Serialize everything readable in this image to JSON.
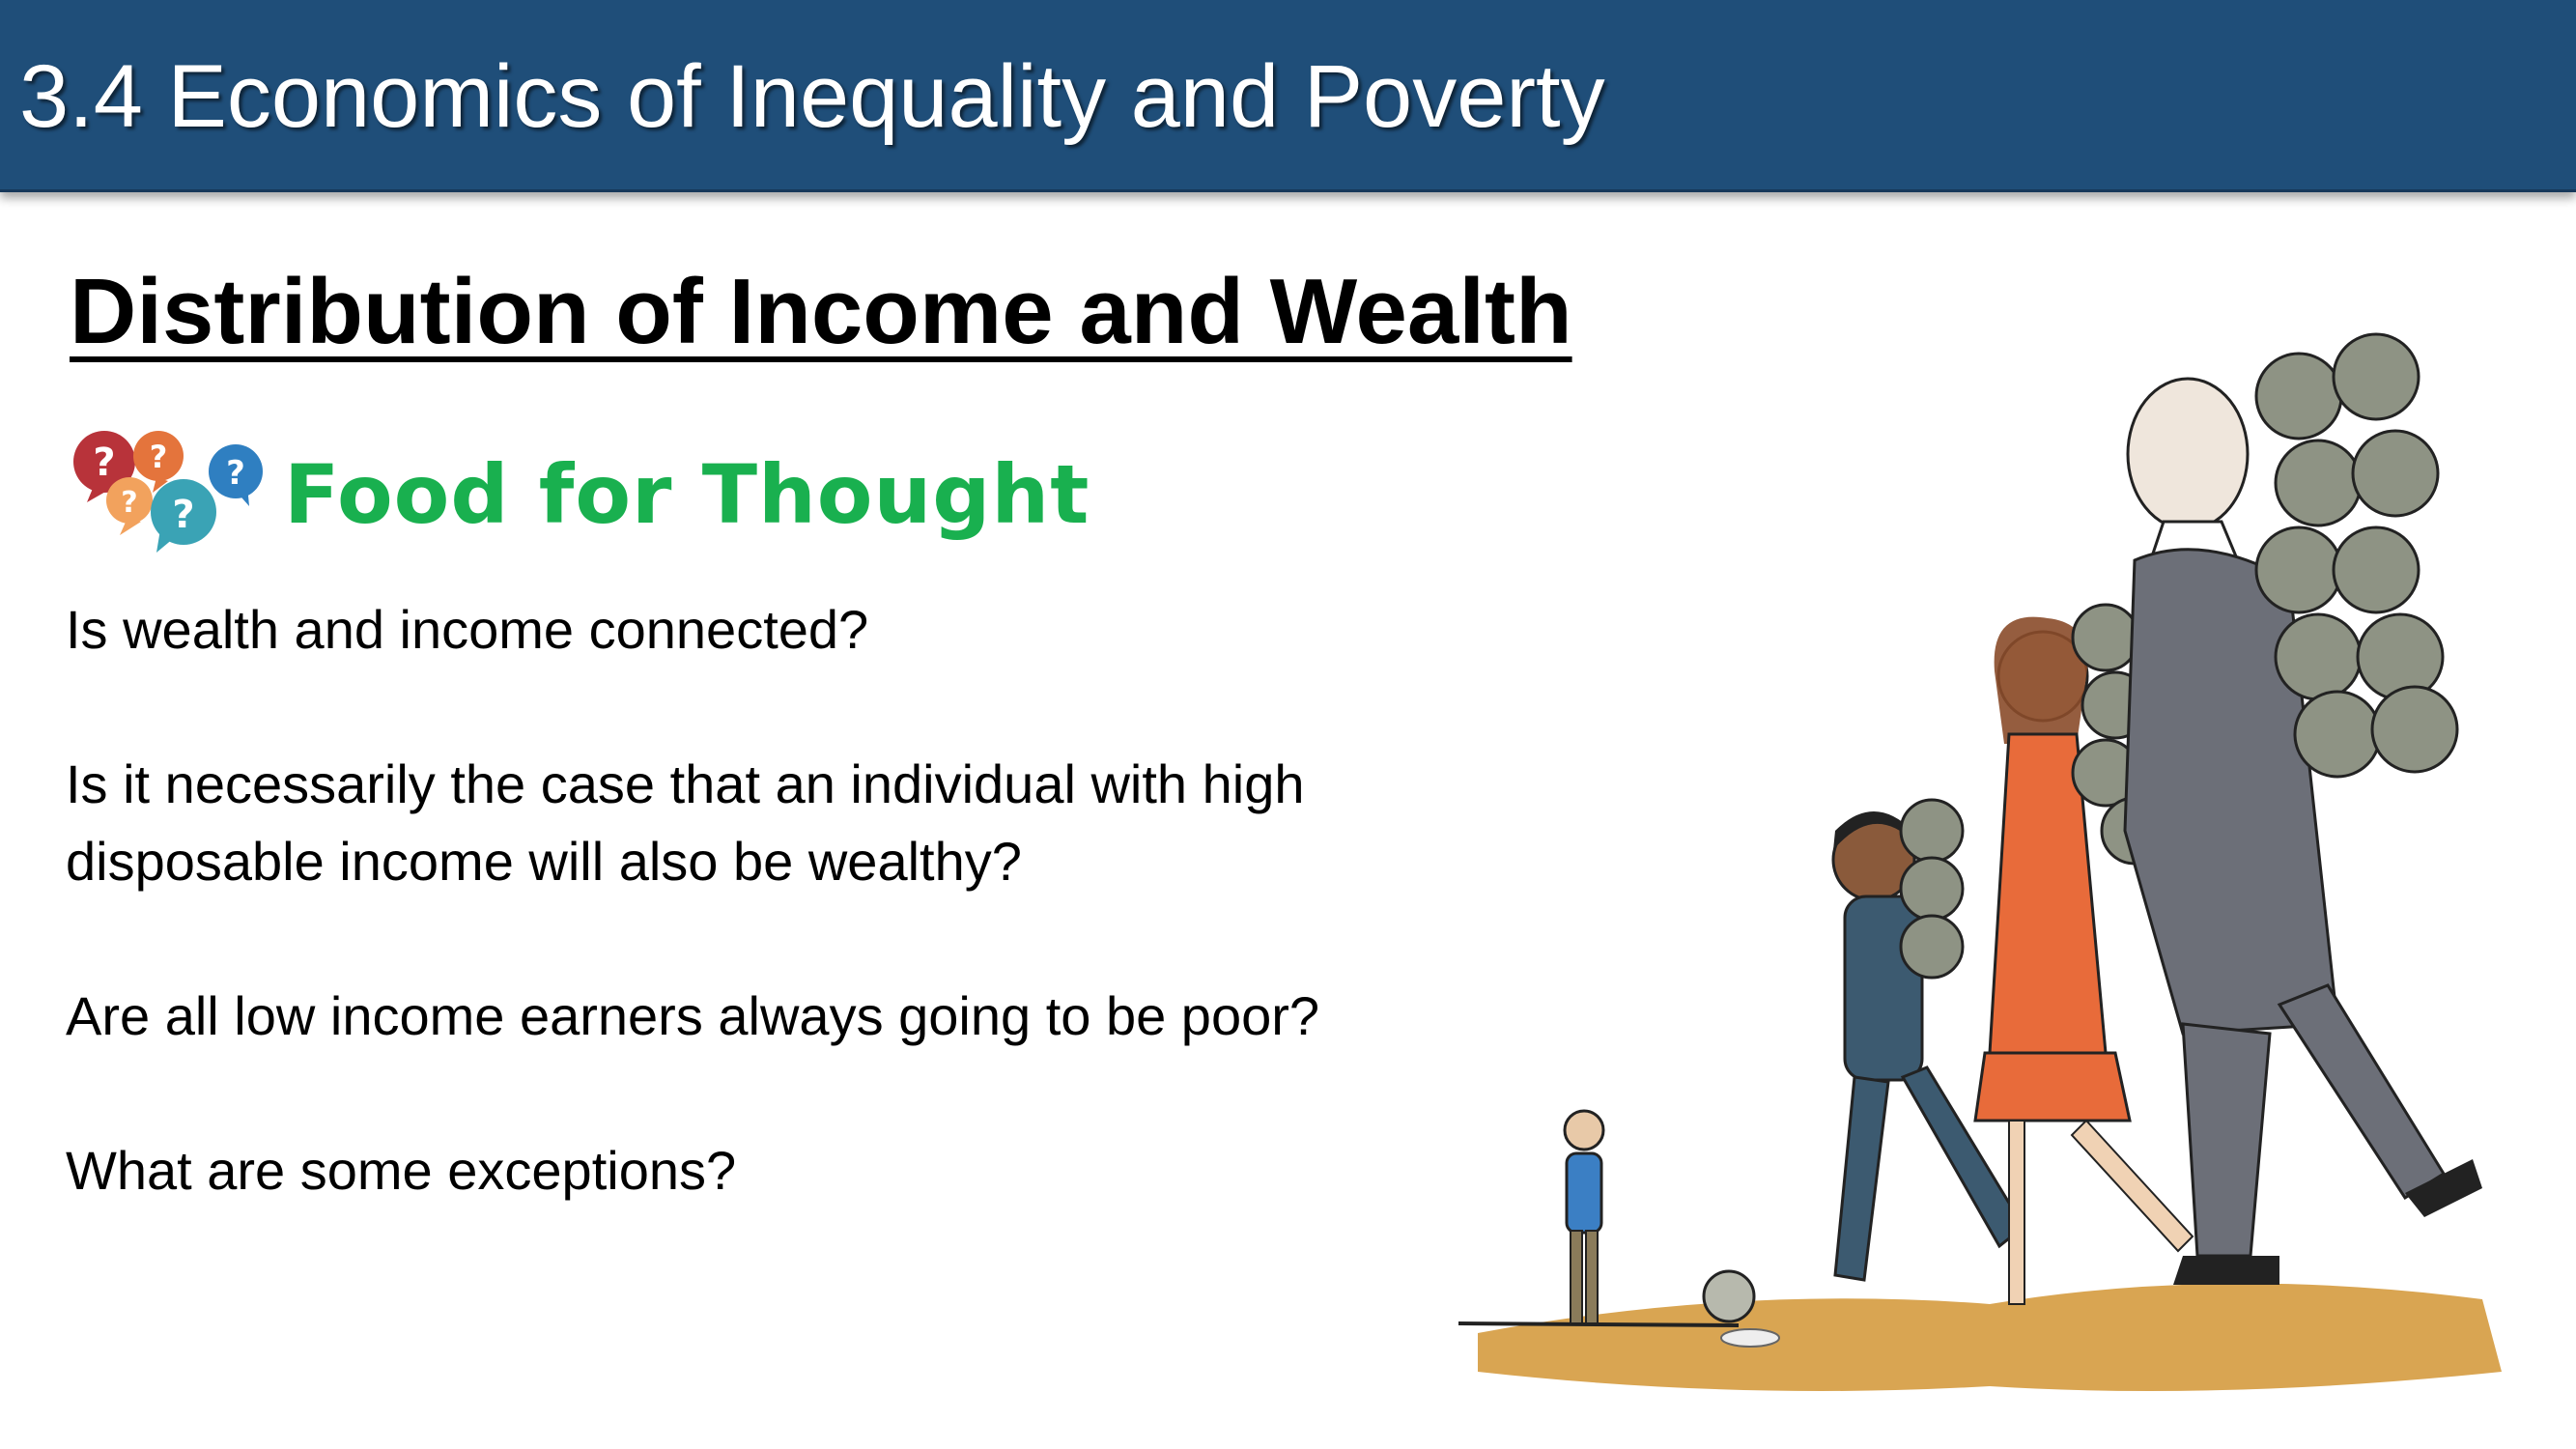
{
  "header": {
    "title": "3.4 Economics of Inequality and Poverty"
  },
  "section": {
    "heading": "Distribution of Income and Wealth"
  },
  "food_for_thought": {
    "label": "Food for Thought",
    "icon": "question-bubbles-icon",
    "bubble_colors": [
      "#b8333a",
      "#e4743c",
      "#f2a25d",
      "#3aa3b5",
      "#2f7fc1"
    ]
  },
  "questions": [
    "Is wealth and income connected?",
    "Is it necessarily the case that an individual with high disposable income will also be wealthy?",
    "Are all low income earners always going to be poor?",
    "What are some exceptions?"
  ],
  "illustration": {
    "icon": "people-carrying-coins-illustration",
    "colors": {
      "ground": "#d9a552",
      "suit": "#6c6f78",
      "dress": "#e86b3a",
      "coin": "#8e9384"
    }
  }
}
